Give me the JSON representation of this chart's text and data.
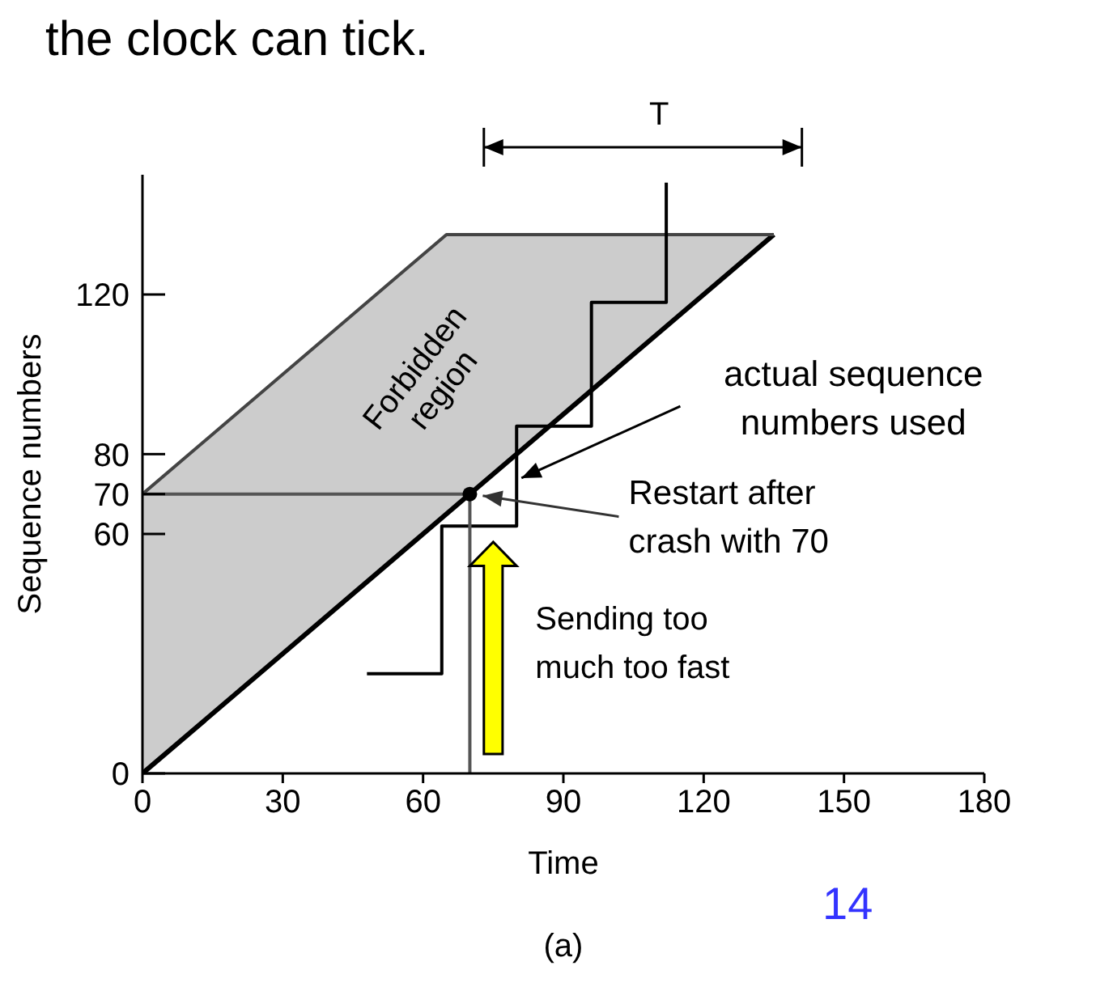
{
  "chart_data": {
    "type": "line",
    "title": "the clock can tick.",
    "xlabel": "Time",
    "ylabel": "Sequence numbers",
    "xlim": [
      0,
      180
    ],
    "xticks": [
      0,
      30,
      60,
      90,
      120,
      150,
      180
    ],
    "ylim": [
      0,
      150
    ],
    "yticks": [
      0,
      60,
      70,
      80,
      120
    ],
    "grid": false,
    "legend": false,
    "series": [
      {
        "color": "#000000",
        "x": [
          0,
          65,
          135
        ],
        "values": [
          0,
          65,
          135
        ],
        "lower": [
          0,
          65,
          135
        ],
        "upper": [
          70,
          135,
          135
        ]
      },
      {
        "color": "#444444",
        "x": [
          0,
          65,
          135
        ],
        "values": [
          70,
          135,
          135
        ]
      },
      {
        "color": "#000000",
        "x": [
          48,
          64,
          64,
          80,
          80,
          96,
          96,
          112,
          112
        ],
        "values": [
          25,
          25,
          62,
          62,
          87,
          87,
          118,
          118,
          148
        ]
      },
      {
        "color": "#555555",
        "x": [
          0,
          70,
          70
        ],
        "values": [
          70,
          70,
          0
        ]
      },
      {
        "type": "scatter",
        "color": "#000000",
        "x": [
          70
        ],
        "values": [
          70
        ],
        "marker": "circle"
      }
    ],
    "annotations": [
      "T",
      "Forbidden region",
      {
        "text": "actual sequence numbers used",
        "x": 80,
        "y": 74
      },
      {
        "text": "Restart after crash with 70",
        "x": 70,
        "y": 70
      },
      "Sending too much too fast",
      "(a)",
      "14"
    ]
  }
}
